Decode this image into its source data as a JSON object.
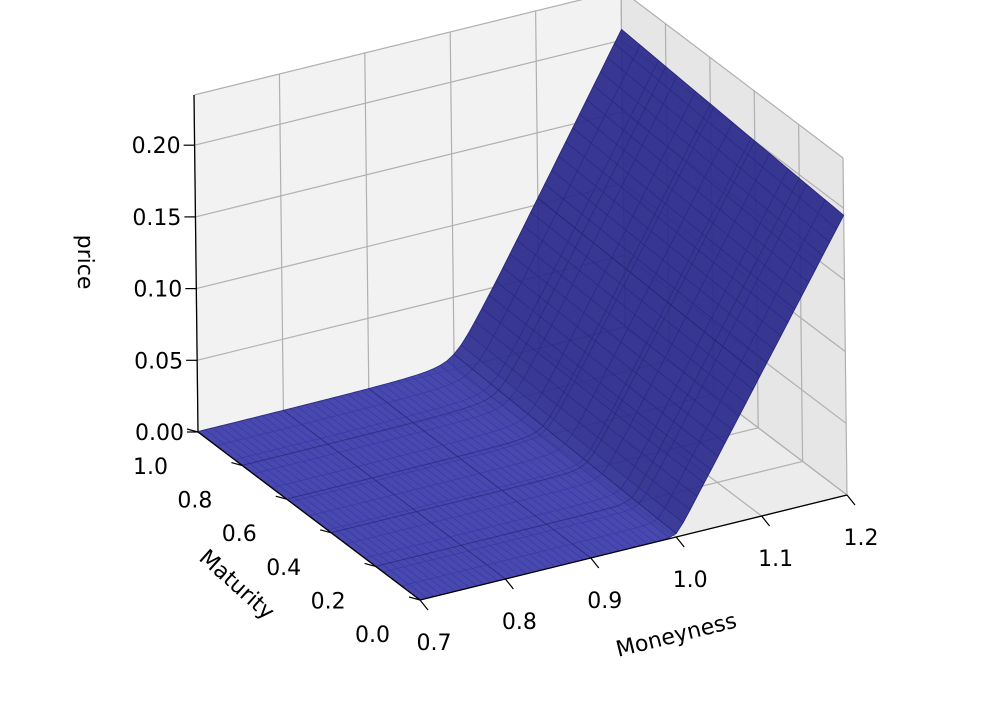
{
  "chart_data": {
    "type": "surface",
    "title": "",
    "xlabel": "Moneyness",
    "ylabel": "Maturity",
    "zlabel": "price",
    "x_ticks": [
      "0.7",
      "0.8",
      "0.9",
      "1.0",
      "1.1",
      "1.2"
    ],
    "y_ticks": [
      "0.0",
      "0.2",
      "0.4",
      "0.6",
      "0.8",
      "1.0"
    ],
    "z_ticks": [
      "0.00",
      "0.05",
      "0.10",
      "0.15",
      "0.20"
    ],
    "xlim": [
      0.7,
      1.2
    ],
    "ylim": [
      0.0,
      1.0
    ],
    "zlim": [
      0.0,
      0.235
    ],
    "grid": true,
    "surface_color": "#2b2b9b",
    "surface": {
      "moneyness": [
        0.7,
        0.8,
        0.9,
        1.0,
        1.1,
        1.2
      ],
      "maturity": [
        0.0,
        0.2,
        0.4,
        0.6,
        0.8,
        1.0
      ],
      "price_at_maturity_0": [
        0.0,
        0.0,
        0.0,
        0.0,
        0.1,
        0.2
      ],
      "price_at_maturity_1": [
        0.0,
        0.0,
        0.0,
        0.05,
        0.12,
        0.21
      ]
    }
  }
}
